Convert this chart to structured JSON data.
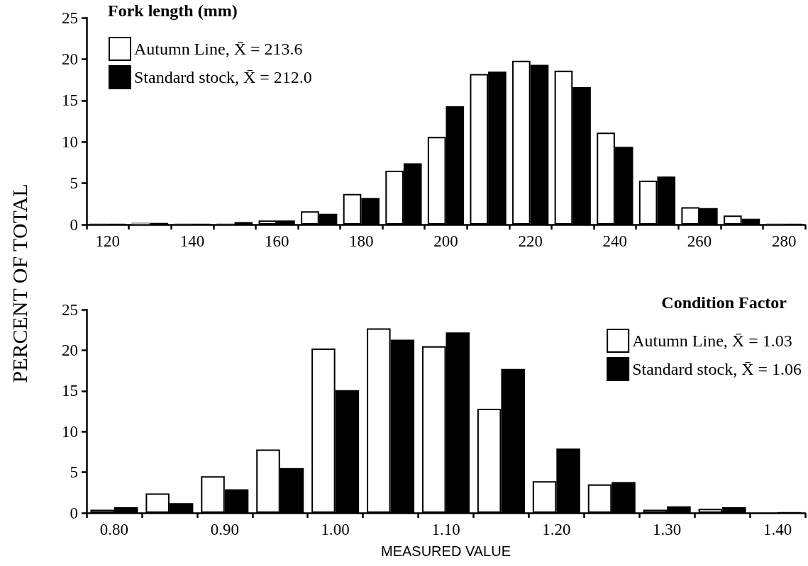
{
  "chart_data": [
    {
      "type": "bar",
      "title": "Fork length (mm)",
      "ylabel": "PERCENT OF TOTAL",
      "categories": [
        "120",
        null,
        "140",
        null,
        "160",
        null,
        "180",
        null,
        "200",
        null,
        "220",
        null,
        "240",
        null,
        "260",
        null,
        "280"
      ],
      "series": [
        {
          "name": "Autumn Line, X̄ = 213.6",
          "color": "#ffffff",
          "values": [
            0.1,
            0.2,
            0.1,
            0.1,
            0.5,
            1.6,
            3.7,
            6.5,
            10.6,
            18.2,
            19.8,
            18.6,
            11.1,
            5.3,
            2.1,
            1.1,
            0.1
          ]
        },
        {
          "name": "Standard stock, X̄ = 212.0",
          "color": "#000000",
          "values": [
            0.1,
            0.2,
            0.1,
            0.3,
            0.5,
            1.3,
            3.2,
            7.4,
            14.3,
            18.5,
            19.3,
            16.6,
            9.4,
            5.8,
            2.0,
            0.7,
            0.1
          ]
        }
      ],
      "ylim": [
        0,
        25
      ],
      "yticks": [
        0,
        5,
        10,
        15,
        20,
        25
      ],
      "grid": false,
      "legend": "top left"
    },
    {
      "type": "bar",
      "title": "Condition Factor",
      "xlabel": "MEASURED VALUE",
      "categories": [
        "0.80",
        null,
        "0.90",
        null,
        "1.00",
        null,
        "1.10",
        null,
        "1.20",
        null,
        "1.30",
        null,
        "1.40"
      ],
      "series": [
        {
          "name": "Autumn Line, X̄ = 1.03",
          "color": "#ffffff",
          "values": [
            0.4,
            2.4,
            4.5,
            7.8,
            20.2,
            22.7,
            20.5,
            12.8,
            3.9,
            3.5,
            0.4,
            0.5,
            0
          ]
        },
        {
          "name": "Standard stock, X̄ = 1.06",
          "color": "#000000",
          "values": [
            0.7,
            1.2,
            2.9,
            5.5,
            15.1,
            21.3,
            22.2,
            17.7,
            7.9,
            3.8,
            0.8,
            0.7,
            0.1
          ]
        }
      ],
      "ylim": [
        0,
        25
      ],
      "yticks": [
        0,
        5,
        10,
        15,
        20,
        25
      ],
      "grid": false,
      "legend": "top right"
    }
  ]
}
